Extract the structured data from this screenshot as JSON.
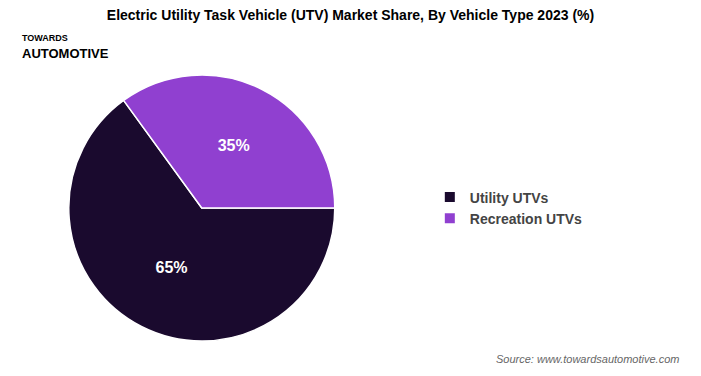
{
  "chart_data": {
    "type": "pie",
    "title": "Electric Utility Task Vehicle (UTV) Market Share, By Vehicle Type 2023 (%)",
    "categories": [
      "Utility UTVs",
      "Recreation UTVs"
    ],
    "values": [
      65,
      35
    ],
    "value_labels": [
      "65%",
      "35%"
    ],
    "colors": [
      "#1a0a2e",
      "#9040d0"
    ],
    "data_labels": true,
    "legend": "right",
    "annotations": [
      "TOWARDS",
      "AUTOMOTIVE",
      "Source: www.towardsautomotive.com"
    ]
  }
}
